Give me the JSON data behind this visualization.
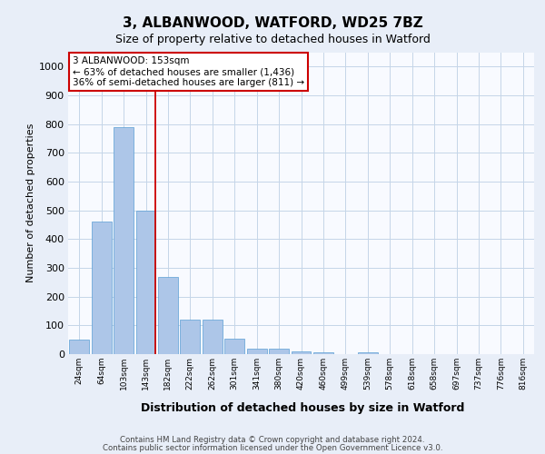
{
  "title1": "3, ALBANWOOD, WATFORD, WD25 7BZ",
  "title2": "Size of property relative to detached houses in Watford",
  "xlabel": "Distribution of detached houses by size in Watford",
  "ylabel": "Number of detached properties",
  "categories": [
    "24sqm",
    "64sqm",
    "103sqm",
    "143sqm",
    "182sqm",
    "222sqm",
    "262sqm",
    "301sqm",
    "341sqm",
    "380sqm",
    "420sqm",
    "460sqm",
    "499sqm",
    "539sqm",
    "578sqm",
    "618sqm",
    "658sqm",
    "697sqm",
    "737sqm",
    "776sqm",
    "816sqm"
  ],
  "values": [
    50,
    460,
    790,
    500,
    270,
    120,
    120,
    55,
    20,
    20,
    10,
    5,
    0,
    5,
    0,
    0,
    0,
    0,
    0,
    0,
    0
  ],
  "bar_color": "#adc6e8",
  "bar_edge_color": "#5a9fd4",
  "vline_color": "#cc0000",
  "vline_index": 3,
  "ylim": [
    0,
    1050
  ],
  "yticks": [
    0,
    100,
    200,
    300,
    400,
    500,
    600,
    700,
    800,
    900,
    1000
  ],
  "annotation_text": "3 ALBANWOOD: 153sqm\n← 63% of detached houses are smaller (1,436)\n36% of semi-detached houses are larger (811) →",
  "annotation_box_facecolor": "white",
  "annotation_box_edgecolor": "#cc0000",
  "footer1": "Contains HM Land Registry data © Crown copyright and database right 2024.",
  "footer2": "Contains public sector information licensed under the Open Government Licence v3.0.",
  "bg_color": "#e8eef8",
  "plot_bg_color": "#f8faff",
  "grid_color": "#c5d5e8",
  "title1_fontsize": 11,
  "title2_fontsize": 9,
  "ylabel_fontsize": 8,
  "xlabel_fontsize": 9,
  "ytick_fontsize": 8,
  "xtick_fontsize": 6.5,
  "footer_fontsize": 6.2
}
